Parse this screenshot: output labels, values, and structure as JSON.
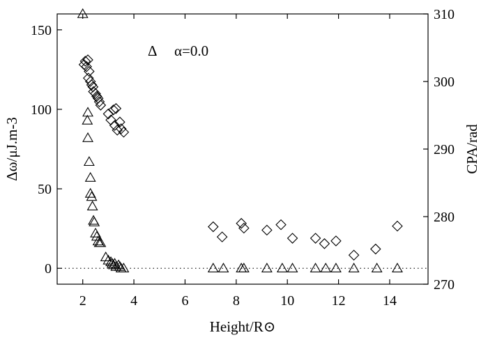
{
  "chart_data": {
    "type": "scatter",
    "xlabel": "Height/R⊙",
    "ylabel_left": "Δω/μJ.m-3",
    "ylabel_right": "CPA/rad",
    "xlim": [
      1,
      15.5
    ],
    "ylim_left": [
      -10,
      160
    ],
    "ylim_right": [
      270,
      310
    ],
    "xticks": [
      2,
      4,
      6,
      8,
      10,
      12,
      14
    ],
    "yticks_left": [
      0,
      50,
      100,
      150
    ],
    "yticks_right": [
      270,
      280,
      290,
      300,
      310
    ],
    "reference_line": {
      "y": 0,
      "style": "dotted"
    },
    "legend": {
      "marker": "Δ",
      "label": "α=0.0",
      "placement": "top-center"
    },
    "series": [
      {
        "name": "α=0.0",
        "marker": "triangle",
        "axis": "left",
        "points": [
          [
            2.0,
            160
          ],
          [
            2.2,
            98
          ],
          [
            2.18,
            93
          ],
          [
            2.2,
            82
          ],
          [
            2.25,
            67
          ],
          [
            2.3,
            57
          ],
          [
            2.3,
            47
          ],
          [
            2.35,
            45
          ],
          [
            2.38,
            39
          ],
          [
            2.42,
            30
          ],
          [
            2.45,
            29
          ],
          [
            2.5,
            22
          ],
          [
            2.55,
            20
          ],
          [
            2.6,
            17
          ],
          [
            2.65,
            16
          ],
          [
            2.7,
            16
          ],
          [
            2.9,
            7
          ],
          [
            3.0,
            5
          ],
          [
            3.1,
            4
          ],
          [
            3.15,
            3
          ],
          [
            3.2,
            2
          ],
          [
            3.25,
            3
          ],
          [
            3.3,
            1
          ],
          [
            3.4,
            2
          ],
          [
            3.45,
            1
          ],
          [
            3.5,
            0
          ],
          [
            3.6,
            0
          ],
          [
            7.1,
            0
          ],
          [
            7.5,
            0
          ],
          [
            8.2,
            0
          ],
          [
            8.3,
            0
          ],
          [
            9.2,
            0
          ],
          [
            9.8,
            0
          ],
          [
            10.2,
            0
          ],
          [
            11.1,
            0
          ],
          [
            11.5,
            0
          ],
          [
            11.9,
            0
          ],
          [
            12.6,
            0
          ],
          [
            13.5,
            0
          ],
          [
            14.3,
            0
          ]
        ]
      },
      {
        "name": "CPA",
        "marker": "diamond",
        "axis": "right",
        "points": [
          [
            2.05,
            302.5
          ],
          [
            2.1,
            303.0
          ],
          [
            2.2,
            303.2
          ],
          [
            2.15,
            302.2
          ],
          [
            2.25,
            301.5
          ],
          [
            2.22,
            300.5
          ],
          [
            2.3,
            300.0
          ],
          [
            2.35,
            299.5
          ],
          [
            2.4,
            299.2
          ],
          [
            2.42,
            298.5
          ],
          [
            2.5,
            298.2
          ],
          [
            2.55,
            297.8
          ],
          [
            2.6,
            297.5
          ],
          [
            2.65,
            297.0
          ],
          [
            2.7,
            296.5
          ],
          [
            3.0,
            295.2
          ],
          [
            3.1,
            294.3
          ],
          [
            3.2,
            295.8
          ],
          [
            3.25,
            293.5
          ],
          [
            3.3,
            296.0
          ],
          [
            3.35,
            292.8
          ],
          [
            3.45,
            294.0
          ],
          [
            3.5,
            293.0
          ],
          [
            3.6,
            292.5
          ],
          [
            7.1,
            278.5
          ],
          [
            7.45,
            277.0
          ],
          [
            8.2,
            279.0
          ],
          [
            8.3,
            278.3
          ],
          [
            9.2,
            278.0
          ],
          [
            9.75,
            278.8
          ],
          [
            10.2,
            276.8
          ],
          [
            11.1,
            276.8
          ],
          [
            11.45,
            276.0
          ],
          [
            11.9,
            276.4
          ],
          [
            12.6,
            274.3
          ],
          [
            13.45,
            275.2
          ],
          [
            14.3,
            278.6
          ]
        ]
      }
    ]
  }
}
